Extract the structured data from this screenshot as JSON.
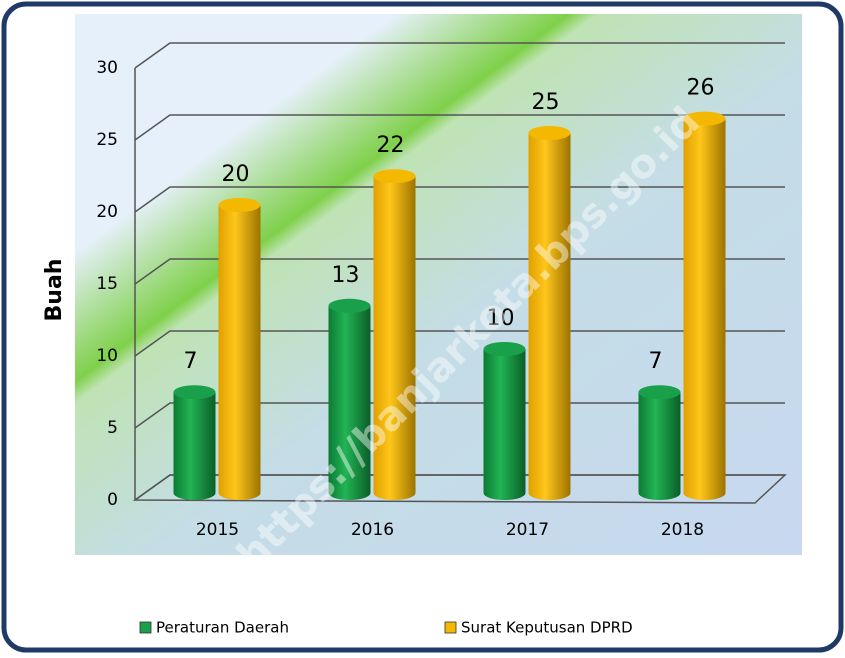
{
  "chart_data": {
    "type": "bar",
    "y_label": "Buah",
    "watermark": "https://banjarkota.bps.go.id",
    "categories": [
      "2015",
      "2016",
      "2017",
      "2018"
    ],
    "series": [
      {
        "name": "Peraturan Daerah",
        "color": "#1aa04a",
        "values": [
          7,
          13,
          10,
          7
        ]
      },
      {
        "name": "Surat Keputusan DPRD",
        "color": "#f5b800",
        "values": [
          20,
          22,
          25,
          26
        ]
      }
    ],
    "ylim": [
      0,
      30
    ],
    "yticks": [
      0,
      5,
      10,
      15,
      20,
      25,
      30
    ],
    "grid": true,
    "legend": "bottom"
  }
}
